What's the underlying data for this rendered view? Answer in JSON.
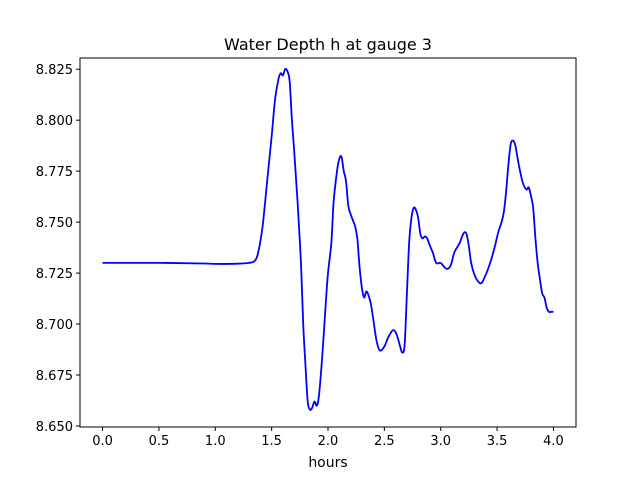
{
  "chart_data": {
    "type": "line",
    "title": "Water Depth h at gauge 3",
    "xlabel": "hours",
    "ylabel": "",
    "xlim": [
      -0.2,
      4.2
    ],
    "ylim": [
      8.6495,
      8.8305
    ],
    "grid": false,
    "x_ticks": [
      0.0,
      0.5,
      1.0,
      1.5,
      2.0,
      2.5,
      3.0,
      3.5,
      4.0
    ],
    "x_tick_labels": [
      "0.0",
      "0.5",
      "1.0",
      "1.5",
      "2.0",
      "2.5",
      "3.0",
      "3.5",
      "4.0"
    ],
    "y_ticks": [
      8.65,
      8.675,
      8.7,
      8.725,
      8.75,
      8.775,
      8.8,
      8.825
    ],
    "y_tick_labels": [
      "8.650",
      "8.675",
      "8.700",
      "8.725",
      "8.750",
      "8.775",
      "8.800",
      "8.825"
    ],
    "colors": {
      "line": "#0000ff",
      "axes": "#000000",
      "background": "#ffffff"
    },
    "series": [
      {
        "x": [
          0.0,
          0.5,
          0.9,
          1.0,
          1.2,
          1.3,
          1.35,
          1.38,
          1.42,
          1.46,
          1.5,
          1.53,
          1.56,
          1.58,
          1.6,
          1.62,
          1.64,
          1.66,
          1.68,
          1.7,
          1.73,
          1.76,
          1.78,
          1.8,
          1.82,
          1.84,
          1.86,
          1.88,
          1.9,
          1.92,
          1.95,
          1.98,
          2.0,
          2.03,
          2.05,
          2.08,
          2.1,
          2.12,
          2.14,
          2.16,
          2.18,
          2.2,
          2.22,
          2.24,
          2.26,
          2.28,
          2.3,
          2.32,
          2.34,
          2.36,
          2.38,
          2.4,
          2.43,
          2.46,
          2.5,
          2.53,
          2.56,
          2.58,
          2.6,
          2.62,
          2.64,
          2.66,
          2.68,
          2.7,
          2.72,
          2.74,
          2.76,
          2.78,
          2.8,
          2.82,
          2.84,
          2.86,
          2.88,
          2.9,
          2.93,
          2.96,
          3.0,
          3.03,
          3.06,
          3.09,
          3.12,
          3.15,
          3.17,
          3.19,
          3.21,
          3.23,
          3.25,
          3.27,
          3.3,
          3.33,
          3.36,
          3.39,
          3.42,
          3.45,
          3.48,
          3.51,
          3.54,
          3.56,
          3.58,
          3.6,
          3.62,
          3.64,
          3.66,
          3.68,
          3.7,
          3.73,
          3.76,
          3.78,
          3.8,
          3.82,
          3.84,
          3.86,
          3.88,
          3.9,
          3.92,
          3.94,
          3.96,
          3.98,
          4.0
        ],
        "y": [
          8.73,
          8.73,
          8.7297,
          8.7295,
          8.7296,
          8.73,
          8.731,
          8.735,
          8.748,
          8.77,
          8.792,
          8.81,
          8.82,
          8.823,
          8.822,
          8.825,
          8.824,
          8.819,
          8.8,
          8.785,
          8.76,
          8.73,
          8.7,
          8.68,
          8.662,
          8.658,
          8.659,
          8.662,
          8.66,
          8.665,
          8.685,
          8.71,
          8.725,
          8.74,
          8.76,
          8.775,
          8.781,
          8.782,
          8.775,
          8.77,
          8.758,
          8.754,
          8.751,
          8.748,
          8.742,
          8.728,
          8.718,
          8.713,
          8.716,
          8.714,
          8.71,
          8.703,
          8.692,
          8.687,
          8.689,
          8.693,
          8.696,
          8.697,
          8.696,
          8.693,
          8.689,
          8.686,
          8.69,
          8.715,
          8.74,
          8.752,
          8.757,
          8.756,
          8.752,
          8.744,
          8.742,
          8.743,
          8.742,
          8.739,
          8.735,
          8.73,
          8.73,
          8.728,
          8.727,
          8.729,
          8.735,
          8.738,
          8.74,
          8.743,
          8.745,
          8.744,
          8.738,
          8.73,
          8.724,
          8.721,
          8.72,
          8.723,
          8.727,
          8.732,
          8.738,
          8.745,
          8.75,
          8.755,
          8.765,
          8.778,
          8.788,
          8.79,
          8.788,
          8.782,
          8.776,
          8.769,
          8.766,
          8.767,
          8.763,
          8.757,
          8.742,
          8.73,
          8.722,
          8.715,
          8.713,
          8.708,
          8.706,
          8.706,
          8.706
        ]
      }
    ]
  }
}
